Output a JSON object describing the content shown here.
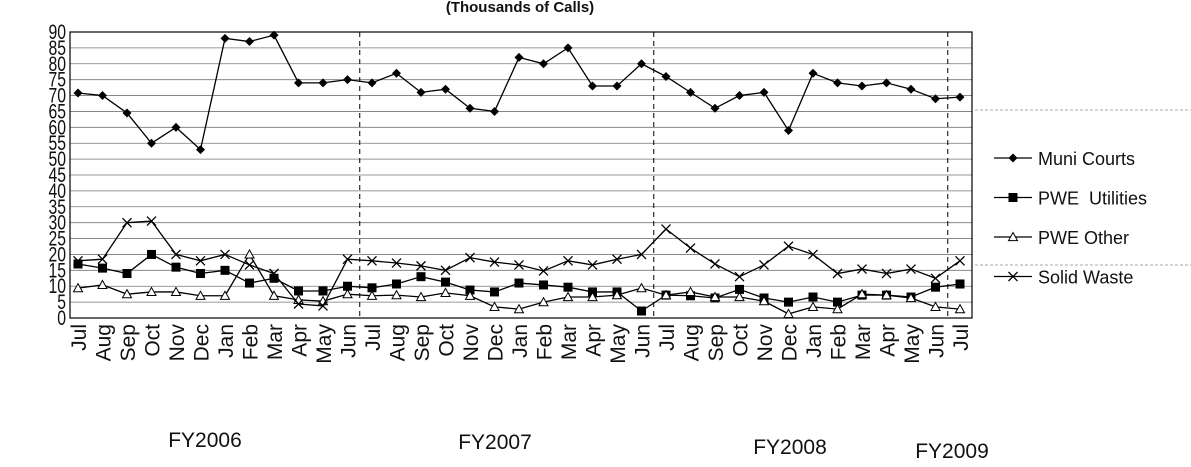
{
  "chart_data": {
    "type": "line",
    "title": "(Thousands of Calls)",
    "categories": [
      "Jul",
      "Aug",
      "Sep",
      "Oct",
      "Nov",
      "Dec",
      "Jan",
      "Feb",
      "Mar",
      "Apr",
      "May",
      "Jun",
      "Jul",
      "Aug",
      "Sep",
      "Oct",
      "Nov",
      "Dec",
      "Jan",
      "Feb",
      "Mar",
      "Apr",
      "May",
      "Jun",
      "Jul",
      "Aug",
      "Sep",
      "Oct",
      "Nov",
      "Dec",
      "Jan",
      "Feb",
      "Mar",
      "Apr",
      "May",
      "Jun",
      "Jul"
    ],
    "annotations": [
      "FY2006",
      "FY2007",
      "FY2008",
      "FY2009"
    ],
    "ylim": [
      0,
      90
    ],
    "yticks": [
      0,
      5,
      10,
      15,
      20,
      25,
      30,
      35,
      40,
      45,
      50,
      55,
      60,
      65,
      70,
      75,
      80,
      85,
      90
    ],
    "grid": true,
    "legend": "right",
    "series": [
      {
        "name": "Muni Courts",
        "color": "#000000",
        "marker": "diamond",
        "values": [
          70.8,
          70,
          64.5,
          55,
          60,
          53,
          88,
          87,
          89,
          74,
          74,
          75,
          74,
          77,
          71,
          72,
          66,
          65,
          82,
          80,
          85,
          73,
          73,
          80,
          76,
          71,
          66,
          70,
          71,
          59,
          77,
          74,
          73,
          74,
          72,
          69,
          69.5
        ]
      },
      {
        "name": "PWE  Utilities",
        "color": "#000000",
        "marker": "square",
        "values": [
          17,
          15.7,
          14,
          20,
          16,
          14,
          15,
          11,
          12.5,
          8.5,
          8.5,
          10,
          9.5,
          10.7,
          13,
          11.3,
          8.8,
          8.2,
          11,
          10.4,
          9.7,
          8.2,
          8.2,
          2.2,
          7.2,
          7,
          6.3,
          9,
          6.3,
          5,
          6.6,
          5,
          7.2,
          7.2,
          6.6,
          9.7,
          10.7
        ]
      },
      {
        "name": "PWE Other",
        "color": "#000000",
        "marker": "triangle",
        "values": [
          9.4,
          10.4,
          7.5,
          8.2,
          8.2,
          7,
          7,
          20,
          7,
          5.7,
          5.3,
          7.5,
          7,
          7.2,
          6.6,
          7.9,
          7,
          3.5,
          2.8,
          5,
          6.6,
          6.6,
          7.2,
          9.4,
          7.2,
          8.2,
          6.6,
          6.6,
          5.3,
          1.3,
          3.5,
          2.8,
          7.5,
          7.2,
          6.3,
          3.5,
          2.8
        ]
      },
      {
        "name": "Solid Waste",
        "color": "#000000",
        "marker": "x",
        "values": [
          18,
          18.5,
          30,
          30.5,
          20,
          18,
          20,
          16.7,
          14,
          4.4,
          3.8,
          18.5,
          18,
          17.3,
          16.4,
          15,
          19,
          17.6,
          16.7,
          14.8,
          18,
          16.7,
          18.5,
          20,
          28,
          22,
          17,
          13,
          16.7,
          22.6,
          20,
          14,
          15.4,
          14,
          15.4,
          12.5,
          18
        ]
      }
    ]
  }
}
